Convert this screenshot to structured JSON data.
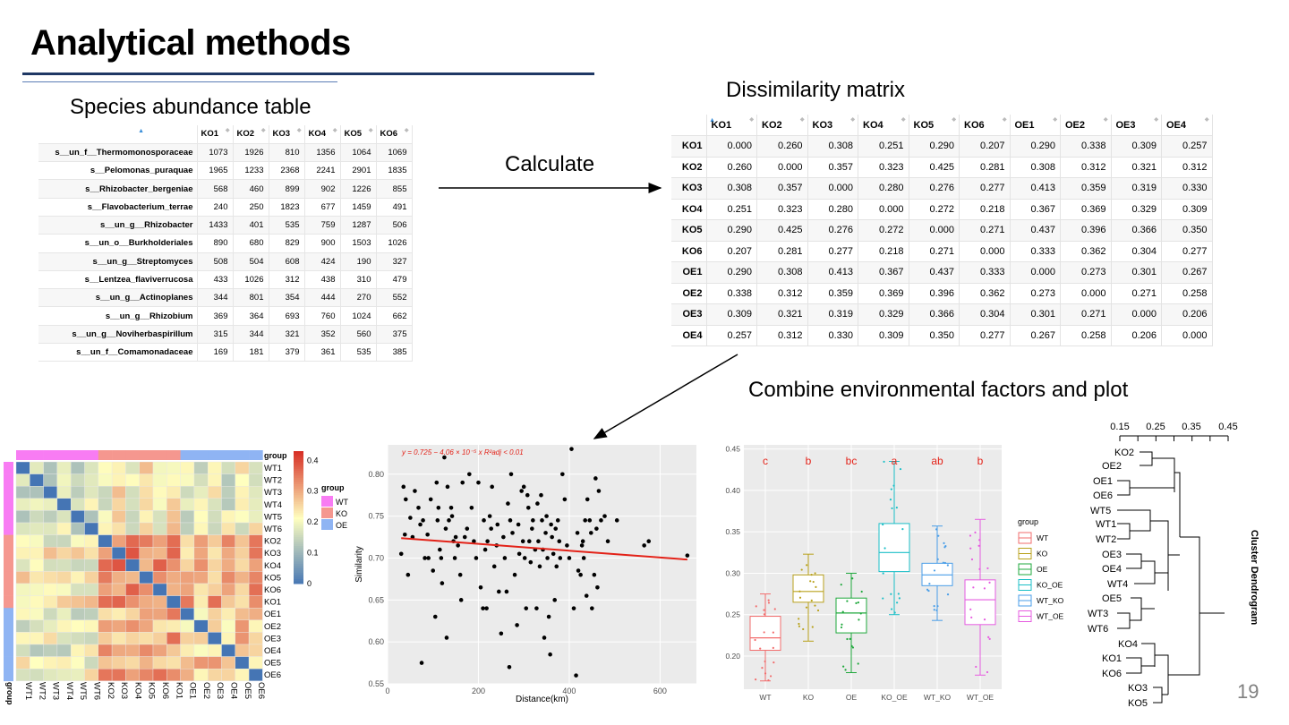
{
  "slide": {
    "title": "Analytical methods",
    "species_heading": "Species abundance table",
    "calculate_label": "Calculate",
    "dissimilarity_heading": "Dissimilarity matrix",
    "combine_heading": "Combine environmental factors and plot",
    "page_number": "19"
  },
  "species_table": {
    "columns": [
      "KO1",
      "KO2",
      "KO3",
      "KO4",
      "KO5",
      "KO6"
    ],
    "rows": [
      {
        "name": "s__un_f__Thermomonosporaceae",
        "values": [
          "1073",
          "1926",
          "810",
          "1356",
          "1064",
          "1069"
        ]
      },
      {
        "name": "s__Pelomonas_puraquae",
        "values": [
          "1965",
          "1233",
          "2368",
          "2241",
          "2901",
          "1835"
        ]
      },
      {
        "name": "s__Rhizobacter_bergeniae",
        "values": [
          "568",
          "460",
          "899",
          "902",
          "1226",
          "855"
        ]
      },
      {
        "name": "s__Flavobacterium_terrae",
        "values": [
          "240",
          "250",
          "1823",
          "677",
          "1459",
          "491"
        ]
      },
      {
        "name": "s__un_g__Rhizobacter",
        "values": [
          "1433",
          "401",
          "535",
          "759",
          "1287",
          "506"
        ]
      },
      {
        "name": "s__un_o__Burkholderiales",
        "values": [
          "890",
          "680",
          "829",
          "900",
          "1503",
          "1026"
        ]
      },
      {
        "name": "s__un_g__Streptomyces",
        "values": [
          "508",
          "504",
          "608",
          "424",
          "190",
          "327"
        ]
      },
      {
        "name": "s__Lentzea_flaviverrucosa",
        "values": [
          "433",
          "1026",
          "312",
          "438",
          "310",
          "479"
        ]
      },
      {
        "name": "s__un_g__Actinoplanes",
        "values": [
          "344",
          "801",
          "354",
          "444",
          "270",
          "552"
        ]
      },
      {
        "name": "s__un_g__Rhizobium",
        "values": [
          "369",
          "364",
          "693",
          "760",
          "1024",
          "662"
        ]
      },
      {
        "name": "s__un_g__Noviherbaspirillum",
        "values": [
          "315",
          "344",
          "321",
          "352",
          "560",
          "375"
        ]
      },
      {
        "name": "s__un_f__Comamonadaceae",
        "values": [
          "169",
          "181",
          "379",
          "361",
          "535",
          "385"
        ]
      }
    ]
  },
  "dissimilarity_matrix": {
    "columns": [
      "KO1",
      "KO2",
      "KO3",
      "KO4",
      "KO5",
      "KO6",
      "OE1",
      "OE2",
      "OE3",
      "OE4"
    ],
    "rows": [
      {
        "name": "KO1",
        "values": [
          "0.000",
          "0.260",
          "0.308",
          "0.251",
          "0.290",
          "0.207",
          "0.290",
          "0.338",
          "0.309",
          "0.257"
        ]
      },
      {
        "name": "KO2",
        "values": [
          "0.260",
          "0.000",
          "0.357",
          "0.323",
          "0.425",
          "0.281",
          "0.308",
          "0.312",
          "0.321",
          "0.312"
        ]
      },
      {
        "name": "KO3",
        "values": [
          "0.308",
          "0.357",
          "0.000",
          "0.280",
          "0.276",
          "0.277",
          "0.413",
          "0.359",
          "0.319",
          "0.330"
        ]
      },
      {
        "name": "KO4",
        "values": [
          "0.251",
          "0.323",
          "0.280",
          "0.000",
          "0.272",
          "0.218",
          "0.367",
          "0.369",
          "0.329",
          "0.309"
        ]
      },
      {
        "name": "KO5",
        "values": [
          "0.290",
          "0.425",
          "0.276",
          "0.272",
          "0.000",
          "0.271",
          "0.437",
          "0.396",
          "0.366",
          "0.350"
        ]
      },
      {
        "name": "KO6",
        "values": [
          "0.207",
          "0.281",
          "0.277",
          "0.218",
          "0.271",
          "0.000",
          "0.333",
          "0.362",
          "0.304",
          "0.277"
        ]
      },
      {
        "name": "OE1",
        "values": [
          "0.290",
          "0.308",
          "0.413",
          "0.367",
          "0.437",
          "0.333",
          "0.000",
          "0.273",
          "0.301",
          "0.267"
        ]
      },
      {
        "name": "OE2",
        "values": [
          "0.338",
          "0.312",
          "0.359",
          "0.369",
          "0.396",
          "0.362",
          "0.273",
          "0.000",
          "0.271",
          "0.258"
        ]
      },
      {
        "name": "OE3",
        "values": [
          "0.309",
          "0.321",
          "0.319",
          "0.329",
          "0.366",
          "0.304",
          "0.301",
          "0.271",
          "0.000",
          "0.206"
        ]
      },
      {
        "name": "OE4",
        "values": [
          "0.257",
          "0.312",
          "0.330",
          "0.309",
          "0.350",
          "0.277",
          "0.267",
          "0.258",
          "0.206",
          "0.000"
        ]
      }
    ]
  },
  "chart_data": [
    {
      "type": "heatmap",
      "labels": [
        "WT1",
        "WT2",
        "WT3",
        "WT4",
        "WT5",
        "WT6",
        "KO2",
        "KO3",
        "KO4",
        "KO5",
        "KO6",
        "KO1",
        "OE1",
        "OE2",
        "OE3",
        "OE4",
        "OE5",
        "OE6"
      ],
      "groups": [
        "WT",
        "WT",
        "WT",
        "WT",
        "WT",
        "WT",
        "KO",
        "KO",
        "KO",
        "KO",
        "KO",
        "KO",
        "OE",
        "OE",
        "OE",
        "OE",
        "OE",
        "OE"
      ],
      "group_title": "group",
      "legend_groups": [
        "WT",
        "KO",
        "OE"
      ],
      "group_colors": {
        "WT": "#f87cf3",
        "KO": "#f5978f",
        "OE": "#8fb4f3"
      },
      "scale_ticks": [
        0,
        0.1,
        0.2,
        0.3,
        0.4
      ],
      "scale_colors": [
        "#4575b4",
        "#ffffbf",
        "#d73027"
      ],
      "range": [
        0,
        0.43
      ],
      "block_means": [
        [
          0.17,
          0.22,
          0.19
        ],
        [
          0.22,
          0.33,
          0.3
        ],
        [
          0.19,
          0.3,
          0.26
        ]
      ],
      "xlabel": "group",
      "ylabel": "group"
    },
    {
      "type": "scatter",
      "xlabel": "Distance(km)",
      "ylabel": "Similarity",
      "equation": "y = 0.725 − 4.06 × 10⁻⁵ x    R²adj < 0.01",
      "xlim": [
        0,
        680
      ],
      "ylim": [
        0.55,
        0.835
      ],
      "xticks": [
        0,
        200,
        400,
        600
      ],
      "yticks": [
        0.55,
        0.6,
        0.65,
        0.7,
        0.75,
        0.8
      ],
      "fit": {
        "intercept": 0.725,
        "slope": -4.06e-05
      },
      "points": [
        [
          30,
          0.705
        ],
        [
          35,
          0.785
        ],
        [
          38,
          0.728
        ],
        [
          40,
          0.77
        ],
        [
          45,
          0.68
        ],
        [
          50,
          0.748
        ],
        [
          55,
          0.725
        ],
        [
          60,
          0.78
        ],
        [
          68,
          0.76
        ],
        [
          72,
          0.74
        ],
        [
          75,
          0.575
        ],
        [
          78,
          0.745
        ],
        [
          82,
          0.7
        ],
        [
          88,
          0.728
        ],
        [
          90,
          0.7
        ],
        [
          95,
          0.77
        ],
        [
          100,
          0.685
        ],
        [
          105,
          0.63
        ],
        [
          108,
          0.79
        ],
        [
          110,
          0.745
        ],
        [
          112,
          0.76
        ],
        [
          115,
          0.71
        ],
        [
          118,
          0.7
        ],
        [
          120,
          0.67
        ],
        [
          125,
          0.82
        ],
        [
          128,
          0.735
        ],
        [
          130,
          0.605
        ],
        [
          132,
          0.785
        ],
        [
          135,
          0.745
        ],
        [
          140,
          0.76
        ],
        [
          142,
          0.75
        ],
        [
          145,
          0.72
        ],
        [
          148,
          0.7
        ],
        [
          150,
          0.725
        ],
        [
          155,
          0.715
        ],
        [
          160,
          0.68
        ],
        [
          162,
          0.65
        ],
        [
          165,
          0.79
        ],
        [
          170,
          0.725
        ],
        [
          175,
          0.735
        ],
        [
          180,
          0.8
        ],
        [
          185,
          0.76
        ],
        [
          190,
          0.72
        ],
        [
          195,
          0.7
        ],
        [
          200,
          0.79
        ],
        [
          205,
          0.665
        ],
        [
          210,
          0.64
        ],
        [
          212,
          0.745
        ],
        [
          215,
          0.71
        ],
        [
          218,
          0.64
        ],
        [
          220,
          0.72
        ],
        [
          225,
          0.75
        ],
        [
          228,
          0.735
        ],
        [
          230,
          0.785
        ],
        [
          235,
          0.69
        ],
        [
          240,
          0.715
        ],
        [
          242,
          0.74
        ],
        [
          245,
          0.66
        ],
        [
          250,
          0.61
        ],
        [
          255,
          0.725
        ],
        [
          258,
          0.7
        ],
        [
          262,
          0.66
        ],
        [
          265,
          0.765
        ],
        [
          268,
          0.57
        ],
        [
          270,
          0.745
        ],
        [
          272,
          0.8
        ],
        [
          275,
          0.73
        ],
        [
          280,
          0.68
        ],
        [
          285,
          0.62
        ],
        [
          288,
          0.74
        ],
        [
          290,
          0.705
        ],
        [
          295,
          0.78
        ],
        [
          298,
          0.72
        ],
        [
          300,
          0.785
        ],
        [
          302,
          0.7
        ],
        [
          305,
          0.64
        ],
        [
          308,
          0.775
        ],
        [
          310,
          0.76
        ],
        [
          312,
          0.72
        ],
        [
          315,
          0.695
        ],
        [
          318,
          0.735
        ],
        [
          320,
          0.745
        ],
        [
          325,
          0.71
        ],
        [
          328,
          0.64
        ],
        [
          330,
          0.765
        ],
        [
          332,
          0.72
        ],
        [
          335,
          0.69
        ],
        [
          338,
          0.775
        ],
        [
          340,
          0.745
        ],
        [
          342,
          0.71
        ],
        [
          345,
          0.605
        ],
        [
          348,
          0.73
        ],
        [
          350,
          0.75
        ],
        [
          352,
          0.7
        ],
        [
          355,
          0.63
        ],
        [
          358,
          0.585
        ],
        [
          360,
          0.74
        ],
        [
          362,
          0.725
        ],
        [
          365,
          0.705
        ],
        [
          368,
          0.65
        ],
        [
          370,
          0.735
        ],
        [
          372,
          0.69
        ],
        [
          375,
          0.745
        ],
        [
          378,
          0.72
        ],
        [
          380,
          0.7
        ],
        [
          385,
          0.8
        ],
        [
          390,
          0.77
        ],
        [
          395,
          0.715
        ],
        [
          400,
          0.7
        ],
        [
          405,
          0.83
        ],
        [
          410,
          0.64
        ],
        [
          415,
          0.56
        ],
        [
          418,
          0.73
        ],
        [
          420,
          0.685
        ],
        [
          425,
          0.68
        ],
        [
          428,
          0.715
        ],
        [
          430,
          0.72
        ],
        [
          432,
          0.7
        ],
        [
          435,
          0.745
        ],
        [
          438,
          0.655
        ],
        [
          440,
          0.77
        ],
        [
          445,
          0.745
        ],
        [
          448,
          0.73
        ],
        [
          450,
          0.64
        ],
        [
          455,
          0.68
        ],
        [
          458,
          0.795
        ],
        [
          460,
          0.735
        ],
        [
          462,
          0.665
        ],
        [
          465,
          0.78
        ],
        [
          470,
          0.745
        ],
        [
          478,
          0.75
        ],
        [
          485,
          0.72
        ],
        [
          505,
          0.745
        ],
        [
          565,
          0.715
        ],
        [
          575,
          0.72
        ],
        [
          660,
          0.703
        ]
      ]
    },
    {
      "type": "box",
      "categories": [
        "WT",
        "KO",
        "OE",
        "KO_OE",
        "WT_KO",
        "WT_OE"
      ],
      "letters": [
        "c",
        "b",
        "bc",
        "a",
        "ab",
        "b"
      ],
      "colors": [
        "#f26d6d",
        "#b8a11c",
        "#1fa83c",
        "#1bbfc7",
        "#4a9ee8",
        "#e65ce0"
      ],
      "legend_title": "group",
      "ylim": [
        0.16,
        0.455
      ],
      "yticks": [
        0.2,
        0.25,
        0.3,
        0.35,
        0.4,
        0.45
      ],
      "boxes": [
        {
          "whisker_low": 0.17,
          "q1": 0.207,
          "median": 0.222,
          "q3": 0.248,
          "whisker_high": 0.275
        },
        {
          "whisker_low": 0.218,
          "q1": 0.265,
          "median": 0.278,
          "q3": 0.298,
          "whisker_high": 0.323
        },
        {
          "whisker_low": 0.18,
          "q1": 0.228,
          "median": 0.252,
          "q3": 0.27,
          "whisker_high": 0.3
        },
        {
          "whisker_low": 0.25,
          "q1": 0.302,
          "median": 0.325,
          "q3": 0.36,
          "whisker_high": 0.435
        },
        {
          "whisker_low": 0.243,
          "q1": 0.285,
          "median": 0.298,
          "q3": 0.312,
          "whisker_high": 0.357
        },
        {
          "whisker_low": 0.177,
          "q1": 0.238,
          "median": 0.268,
          "q3": 0.292,
          "whisker_high": 0.365
        }
      ]
    },
    {
      "type": "dendrogram",
      "ylabel": "Cluster Dendrogram",
      "axis_ticks": [
        "0.15",
        "0.25",
        "0.35",
        "0.45"
      ],
      "leaves": [
        "KO2",
        "OE2",
        "OE1",
        "OE6",
        "WT5",
        "WT1",
        "WT2",
        "OE3",
        "OE4",
        "WT4",
        "OE5",
        "WT3",
        "WT6",
        "KO4",
        "KO1",
        "KO6",
        "KO3",
        "KO5"
      ]
    }
  ]
}
